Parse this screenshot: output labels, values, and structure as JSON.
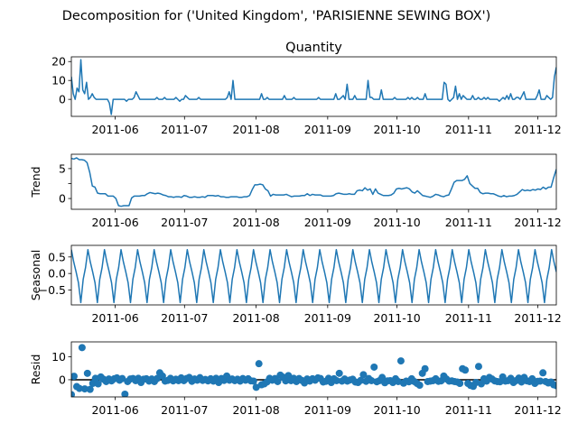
{
  "figure_title": "Decomposition for ('United Kingdom', 'PARISIENNE SEWING BOX')",
  "colors": {
    "line": "#1f77b4",
    "axis": "#000000",
    "background": "#ffffff"
  },
  "chart_data": [
    {
      "type": "line",
      "title": "Quantity",
      "ylabel": "",
      "xlabel": "",
      "ylim": [
        -9,
        22.5
      ],
      "yticks": [
        0,
        10,
        20
      ],
      "ytick_labels": [
        "0",
        "10",
        "20"
      ],
      "x_start": "2011-05-13",
      "x_end": "2011-12-09",
      "xticks": [
        "2011-06",
        "2011-07",
        "2011-08",
        "2011-09",
        "2011-10",
        "2011-11",
        "2011-12"
      ],
      "series": [
        {
          "values": [
            12.0,
            3.0,
            0.0,
            6.0,
            4.0,
            21.0,
            5.0,
            3.0,
            9.0,
            0.0,
            1.0,
            3.0,
            1.0,
            0.0,
            0.0,
            0.0,
            0.0,
            0.0,
            0.0,
            0.0,
            -2.0,
            -8.0,
            0.0,
            0.0,
            0.0,
            0.0,
            0.0,
            0.0,
            0.0,
            -1.0,
            0.0,
            0.0,
            0.0,
            1.0,
            4.0,
            2.0,
            0.0,
            0.0,
            0.0,
            0.0,
            0.0,
            0.0,
            0.0,
            0.0,
            0.0,
            1.0,
            0.0,
            0.0,
            0.0,
            1.0,
            0.0,
            0.0,
            0.0,
            0.0,
            0.0,
            1.0,
            0.0,
            -1.0,
            0.0,
            0.0,
            2.0,
            1.0,
            0.0,
            0.0,
            0.0,
            0.0,
            0.0,
            1.0,
            0.0,
            0.0,
            0.0,
            0.0,
            0.0,
            0.0,
            0.0,
            0.0,
            0.0,
            0.0,
            0.0,
            0.0,
            0.0,
            0.0,
            1.0,
            4.0,
            0.0,
            10.0,
            0.0,
            0.0,
            0.0,
            0.0,
            0.0,
            0.0,
            0.0,
            0.0,
            0.0,
            0.0,
            0.0,
            0.0,
            0.0,
            0.0,
            3.0,
            0.0,
            0.0,
            1.0,
            0.0,
            0.0,
            0.0,
            0.0,
            0.0,
            0.0,
            0.0,
            0.0,
            2.0,
            0.0,
            0.0,
            0.0,
            0.0,
            1.0,
            0.0,
            0.0,
            0.0,
            0.0,
            0.0,
            0.0,
            0.0,
            0.0,
            0.0,
            0.0,
            0.0,
            0.0,
            1.0,
            0.0,
            0.0,
            0.0,
            0.0,
            0.0,
            0.0,
            0.0,
            0.0,
            3.0,
            0.0,
            0.0,
            1.0,
            2.0,
            0.0,
            8.0,
            0.0,
            0.0,
            0.0,
            2.0,
            0.0,
            0.0,
            0.0,
            0.0,
            0.0,
            0.0,
            10.0,
            1.0,
            1.0,
            0.0,
            0.0,
            0.0,
            0.0,
            5.0,
            0.0,
            0.0,
            0.0,
            0.0,
            0.0,
            0.0,
            1.0,
            0.0,
            0.0,
            0.0,
            0.0,
            0.0,
            0.0,
            1.0,
            0.0,
            1.0,
            0.0,
            0.0,
            1.0,
            0.0,
            0.0,
            0.0,
            3.0,
            0.0,
            0.0,
            0.0,
            0.0,
            0.0,
            0.0,
            0.0,
            0.0,
            0.0,
            9.0,
            8.0,
            0.0,
            -1.0,
            0.0,
            1.0,
            7.0,
            0.0,
            3.0,
            0.0,
            2.0,
            1.0,
            0.0,
            0.0,
            0.0,
            2.0,
            0.0,
            0.0,
            1.0,
            0.0,
            0.0,
            1.0,
            0.0,
            1.0,
            0.0,
            0.0,
            0.0,
            0.0,
            0.0,
            -1.0,
            0.0,
            1.0,
            0.0,
            2.0,
            0.0,
            3.0,
            0.0,
            0.0,
            1.0,
            1.0,
            0.0,
            2.0,
            4.0,
            0.0,
            0.0,
            0.0,
            0.0,
            0.0,
            0.0,
            2.0,
            5.0,
            0.0,
            0.0,
            0.0,
            2.0,
            1.0,
            0.0,
            1.0,
            12.0,
            17.0
          ]
        }
      ]
    },
    {
      "type": "line",
      "title": "",
      "ylabel": "Trend",
      "xlabel": "",
      "ylim": [
        -1.8,
        7.4
      ],
      "yticks": [
        0,
        2.5,
        5
      ],
      "ytick_labels": [
        "0",
        "",
        "5"
      ],
      "x_start": "2011-05-13",
      "x_end": "2011-12-09",
      "xticks": [
        "2011-06",
        "2011-07",
        "2011-08",
        "2011-09",
        "2011-10",
        "2011-11",
        "2011-12"
      ],
      "series": [
        {
          "values": [
            6.7,
            6.6,
            6.8,
            6.5,
            6.5,
            6.4,
            6.0,
            4.4,
            2.1,
            1.9,
            0.9,
            0.8,
            0.8,
            0.8,
            0.4,
            0.4,
            0.4,
            0.0,
            -1.2,
            -1.3,
            -1.2,
            -1.2,
            -1.2,
            0.1,
            0.4,
            0.4,
            0.4,
            0.5,
            0.5,
            0.8,
            1.0,
            0.9,
            0.8,
            0.9,
            0.8,
            0.6,
            0.5,
            0.3,
            0.3,
            0.2,
            0.3,
            0.3,
            0.2,
            0.5,
            0.4,
            0.2,
            0.2,
            0.3,
            0.2,
            0.2,
            0.3,
            0.2,
            0.5,
            0.5,
            0.5,
            0.4,
            0.5,
            0.3,
            0.3,
            0.2,
            0.2,
            0.3,
            0.3,
            0.3,
            0.2,
            0.2,
            0.3,
            0.3,
            0.5,
            1.5,
            2.3,
            2.3,
            2.4,
            2.3,
            1.6,
            1.3,
            0.4,
            0.7,
            0.6,
            0.6,
            0.6,
            0.6,
            0.7,
            0.5,
            0.3,
            0.4,
            0.4,
            0.4,
            0.5,
            0.5,
            0.8,
            0.5,
            0.7,
            0.6,
            0.6,
            0.6,
            0.4,
            0.4,
            0.4,
            0.4,
            0.5,
            0.8,
            0.9,
            0.8,
            0.7,
            0.7,
            0.8,
            0.7,
            0.7,
            1.3,
            1.4,
            1.3,
            1.8,
            1.4,
            1.6,
            0.7,
            1.6,
            0.9,
            0.7,
            0.5,
            0.5,
            0.5,
            0.6,
            0.9,
            1.6,
            1.7,
            1.6,
            1.7,
            1.8,
            1.6,
            1.1,
            0.9,
            1.3,
            0.9,
            0.5,
            0.4,
            0.3,
            0.2,
            0.4,
            0.7,
            0.6,
            0.4,
            0.3,
            0.5,
            0.6,
            1.6,
            2.7,
            3.0,
            3.0,
            3.0,
            3.2,
            3.8,
            2.5,
            2.1,
            1.7,
            1.7,
            1.0,
            0.8,
            0.9,
            0.9,
            0.8,
            0.8,
            0.6,
            0.4,
            0.3,
            0.5,
            0.3,
            0.4,
            0.4,
            0.5,
            0.7,
            1.1,
            1.5,
            1.3,
            1.4,
            1.3,
            1.5,
            1.4,
            1.6,
            1.5,
            1.9,
            1.6,
            1.9,
            1.9,
            3.5,
            4.9
          ]
        }
      ]
    },
    {
      "type": "line",
      "title": "",
      "ylabel": "Seasonal",
      "xlabel": "",
      "ylim": [
        -0.95,
        0.85
      ],
      "yticks": [
        -0.5,
        0.0,
        0.5
      ],
      "ytick_labels": [
        "−0.5",
        "0.0",
        "0.5"
      ],
      "x_start": "2011-05-13",
      "x_end": "2011-12-09",
      "xticks": [
        "2011-06",
        "2011-07",
        "2011-08",
        "2011-09",
        "2011-10",
        "2011-11",
        "2011-12"
      ],
      "seasonal_pattern": [
        0.72,
        0.35,
        0.05,
        -0.28,
        -0.88,
        -0.18,
        0.18
      ],
      "period_points": 7,
      "series": [
        {
          "values": []
        }
      ]
    },
    {
      "type": "scatter",
      "title": "",
      "ylabel": "Resid",
      "xlabel": "",
      "ylim": [
        -7.5,
        16.5
      ],
      "yticks": [
        0,
        10
      ],
      "ytick_labels": [
        "0",
        "10"
      ],
      "zero_line": true,
      "x_start": "2011-05-13",
      "x_end": "2011-12-09",
      "xticks": [
        "2011-06",
        "2011-07",
        "2011-08",
        "2011-09",
        "2011-10",
        "2011-11",
        "2011-12"
      ],
      "series": [
        {
          "values": [
            -6.5,
            1.5,
            -3.0,
            -3.8,
            14.0,
            -4.0,
            2.8,
            -4.2,
            -1.6,
            0.6,
            -1.8,
            1.2,
            0.2,
            -0.8,
            0.3,
            -0.5,
            0.4,
            0.8,
            -0.2,
            0.5,
            -6.3,
            -0.8,
            0.3,
            0.5,
            -0.4,
            0.6,
            -1.2,
            0.2,
            0.4,
            -0.6,
            0.3,
            -0.8,
            0.5,
            3.0,
            1.6,
            -0.6,
            -0.3,
            0.6,
            -0.5,
            0.2,
            -0.4,
            0.8,
            -0.4,
            0.5,
            1.0,
            -0.7,
            0.3,
            -0.2,
            0.9,
            -0.3,
            0.1,
            -0.5,
            0.4,
            -0.6,
            0.6,
            -1.2,
            0.5,
            -0.3,
            1.6,
            -0.2,
            0.3,
            -0.4,
            0.2,
            -0.6,
            0.5,
            -0.2,
            0.4,
            -0.5,
            -0.6,
            -3.3,
            7.0,
            -2.2,
            -1.8,
            -1.0,
            0.6,
            -0.2,
            0.5,
            -0.8,
            2.0,
            1.1,
            -0.5,
            1.8,
            -0.4,
            0.6,
            -0.8,
            0.5,
            -0.3,
            -1.4,
            0.3,
            -0.6,
            0.4,
            -0.2,
            0.8,
            0.5,
            -1.0,
            -0.7,
            0.6,
            -1.2,
            0.4,
            -0.4,
            2.8,
            -0.6,
            0.3,
            -0.6,
            -0.1,
            0.2,
            -1.0,
            -1.2,
            -0.3,
            2.2,
            -0.7,
            0.5,
            -0.4,
            5.5,
            -0.9,
            -0.4,
            1.0,
            -1.3,
            -0.5,
            -0.4,
            -1.2,
            0.4,
            -0.8,
            8.2,
            -1.5,
            -0.6,
            -0.9,
            0.4,
            -0.8,
            -1.6,
            -2.4,
            2.8,
            4.8,
            -0.8,
            -0.6,
            -0.4,
            0.4,
            -0.7,
            -0.5,
            1.6,
            0.3,
            -0.6,
            -0.5,
            -0.8,
            -1.0,
            -1.6,
            4.8,
            4.2,
            -1.6,
            -2.5,
            -2.9,
            -1.2,
            5.8,
            -1.8,
            0.4,
            -0.6,
            1.0,
            0.3,
            -0.5,
            -0.8,
            -0.9,
            1.2,
            -0.6,
            -0.4,
            0.6,
            -1.2,
            -0.4,
            0.7,
            -1.0,
            1.0,
            -0.5,
            -0.8,
            0.4,
            -1.6,
            -0.7,
            -0.6,
            3.0,
            -0.8,
            -1.4,
            -1.0,
            -2.2,
            -2.6
          ]
        }
      ]
    }
  ]
}
